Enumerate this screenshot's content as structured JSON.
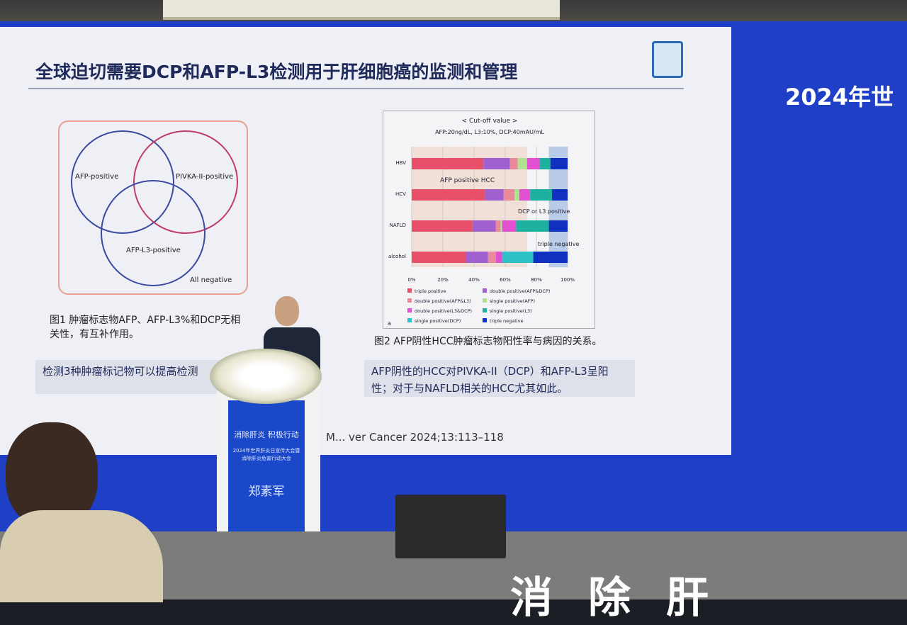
{
  "slide": {
    "title": "全球迫切需要DCP和AFP-L3检测用于肝细胞癌的监测和管理",
    "venn": {
      "labels": [
        "AFP-positive",
        "PIVKA-II-positive",
        "AFP-L3-positive",
        "All negative"
      ]
    },
    "fig1_caption": "图1 肿瘤标志物AFP、AFP-L3%和DCP无相关性，有互补作用。",
    "left_box": "检测3种肿瘤标记物可以提高检测",
    "fig2_caption": "图2 AFP阴性HCC肿瘤标志物阳性率与病因的关系。",
    "right_box": "AFP阴性的HCC对PIVKA-II（DCP）和AFP-L3呈阳性；对于与NAFLD相关的HCC尤其如此。",
    "reference": "M... ver Cancer 2024;13:113–118"
  },
  "chart_data": {
    "type": "bar",
    "stacked": true,
    "orientation": "horizontal",
    "title": "< Cut-off value >",
    "subtitle": "AFP:20ng/dL, L3:10%, DCP:40mAU/mL",
    "panel_label": "a",
    "categories": [
      "HBV",
      "HCV",
      "NAFLD",
      "alcohol"
    ],
    "xlim": [
      0,
      100
    ],
    "xticks": [
      "0%",
      "20%",
      "40%",
      "60%",
      "80%",
      "100%"
    ],
    "annotations": [
      "AFP positive HCC",
      "DCP or L3 positive",
      "triple negative"
    ],
    "legend_position": "bottom",
    "series": [
      {
        "name": "triple positive",
        "color": "#e8506a",
        "values": [
          46,
          47,
          39,
          35
        ]
      },
      {
        "name": "double positive(AFP&DCP)",
        "color": "#a060d0",
        "values": [
          17,
          12,
          15,
          14
        ]
      },
      {
        "name": "double positive(AFP&L3)",
        "color": "#e88a9a",
        "values": [
          5,
          7,
          3,
          5
        ]
      },
      {
        "name": "single positive(AFP)",
        "color": "#b0e090",
        "values": [
          6,
          3,
          1,
          0
        ]
      },
      {
        "name": "double positive(L3&DCP)",
        "color": "#e050d0",
        "values": [
          8,
          7,
          9,
          4
        ]
      },
      {
        "name": "single positive(L3)",
        "color": "#20b0a0",
        "values": [
          7,
          14,
          21,
          0
        ]
      },
      {
        "name": "single positive(DCP)",
        "color": "#30c0c8",
        "values": [
          0,
          0,
          0,
          20
        ]
      },
      {
        "name": "triple negative",
        "color": "#1030c0",
        "values": [
          11,
          10,
          12,
          22
        ]
      }
    ]
  },
  "wall": {
    "title": "2024年世"
  },
  "podium": {
    "slogan": "消除肝炎 积极行动",
    "event": "2024年世界肝炎日宣传大会暨消除肝炎危害行动大会",
    "speaker": "郑素军"
  },
  "stage": {
    "bigtext": "消除肝"
  }
}
